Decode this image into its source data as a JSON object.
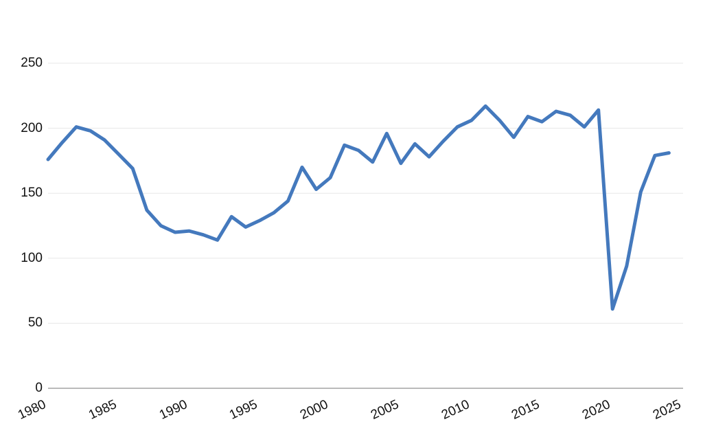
{
  "chart_data": {
    "type": "line",
    "x": [
      1980,
      1981,
      1982,
      1983,
      1984,
      1985,
      1986,
      1987,
      1988,
      1989,
      1990,
      1991,
      1992,
      1993,
      1994,
      1995,
      1996,
      1997,
      1998,
      1999,
      2000,
      2001,
      2002,
      2003,
      2004,
      2005,
      2006,
      2007,
      2008,
      2009,
      2010,
      2011,
      2012,
      2013,
      2014,
      2015,
      2016,
      2017,
      2018,
      2019,
      2020,
      2021,
      2022,
      2023,
      2024
    ],
    "values": [
      176,
      189,
      201,
      198,
      191,
      180,
      169,
      137,
      125,
      120,
      121,
      118,
      114,
      132,
      124,
      129,
      135,
      144,
      170,
      153,
      162,
      187,
      183,
      174,
      196,
      173,
      188,
      178,
      190,
      201,
      206,
      217,
      206,
      193,
      209,
      205,
      213,
      210,
      201,
      214,
      61,
      94,
      151,
      179,
      181
    ],
    "x_tick_labels": [
      "1980",
      "1985",
      "1990",
      "1995",
      "2000",
      "2005",
      "2010",
      "2015",
      "2020",
      "2025"
    ],
    "x_tick_years": [
      1980,
      1985,
      1990,
      1995,
      2000,
      2005,
      2010,
      2015,
      2020,
      2025
    ],
    "y_tick_labels": [
      "0",
      "50",
      "100",
      "150",
      "200",
      "250"
    ],
    "y_ticks": [
      0,
      50,
      100,
      150,
      200,
      250
    ],
    "xlim": [
      1980,
      2025
    ],
    "ylim": [
      0,
      250
    ],
    "grid": "horizontal",
    "legend_position": "none",
    "colors": {
      "line": "#4479BD",
      "gridline": "#E7E7E7",
      "axis_line": "#757575",
      "label": "#111111",
      "background": "#FFFFFF"
    }
  }
}
